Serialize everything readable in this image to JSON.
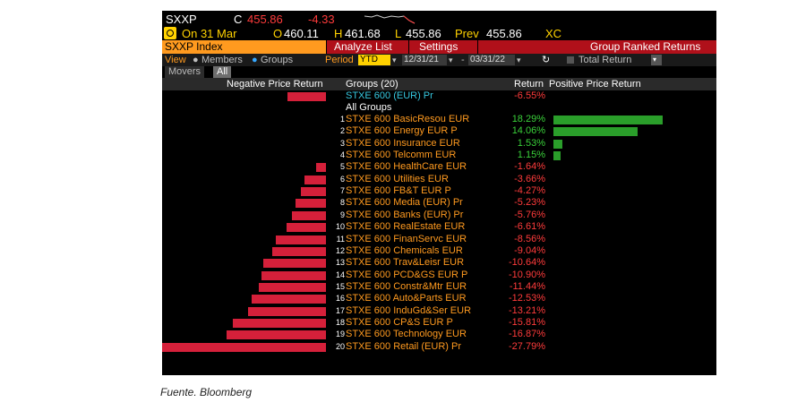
{
  "header": {
    "ticker": "SXXP",
    "type_code": "C",
    "last_price": "455.86",
    "change": "-4.33",
    "date_label": "On 31 Mar",
    "open_label": "O",
    "open": "460.11",
    "high_label": "H",
    "high": "461.68",
    "low_label": "L",
    "low": "455.86",
    "prev_label": "Prev",
    "prev": "455.86",
    "exchange": "XC"
  },
  "menu": {
    "index_label": "SXXP Index",
    "analyze": "Analyze List",
    "settings": "Settings",
    "title": "Group Ranked Returns"
  },
  "options": {
    "view_label": "View",
    "members": "Members",
    "groups": "Groups",
    "period_label": "Period",
    "period": "YTD",
    "start_date": "12/31/21",
    "end_date": "03/31/22",
    "total_return": "Total Return"
  },
  "tabs": {
    "movers": "Movers",
    "all": "All"
  },
  "columns": {
    "neg": "Negative Price Return",
    "groups": "Groups (20)",
    "ret": "Return",
    "pos": "Positive Price Return"
  },
  "index_row": {
    "name": "STXE 600 (EUR) Pr",
    "ret": "-6.55%",
    "value": -6.55
  },
  "all_groups_label": "All Groups",
  "rows": [
    {
      "rank": "1",
      "name": "STXE 600 BasicResou EUR",
      "ret": "18.29%",
      "value": 18.29
    },
    {
      "rank": "2",
      "name": "STXE 600 Energy EUR P",
      "ret": "14.06%",
      "value": 14.06
    },
    {
      "rank": "3",
      "name": "STXE 600 Insurance EUR",
      "ret": "1.53%",
      "value": 1.53
    },
    {
      "rank": "4",
      "name": "STXE 600 Telcomm EUR",
      "ret": "1.15%",
      "value": 1.15
    },
    {
      "rank": "5",
      "name": "STXE 600 HealthCare EUR",
      "ret": "-1.64%",
      "value": -1.64
    },
    {
      "rank": "6",
      "name": "STXE 600 Utilities EUR",
      "ret": "-3.66%",
      "value": -3.66
    },
    {
      "rank": "7",
      "name": "STXE 600 FB&T EUR P",
      "ret": "-4.27%",
      "value": -4.27
    },
    {
      "rank": "8",
      "name": "STXE 600 Media (EUR) Pr",
      "ret": "-5.23%",
      "value": -5.23
    },
    {
      "rank": "9",
      "name": "STXE 600 Banks (EUR) Pr",
      "ret": "-5.76%",
      "value": -5.76
    },
    {
      "rank": "10",
      "name": "STXE 600 RealEstate EUR",
      "ret": "-6.61%",
      "value": -6.61
    },
    {
      "rank": "11",
      "name": "STXE 600 FinanServc EUR",
      "ret": "-8.56%",
      "value": -8.56
    },
    {
      "rank": "12",
      "name": "STXE 600 Chemicals EUR",
      "ret": "-9.04%",
      "value": -9.04
    },
    {
      "rank": "13",
      "name": "STXE 600 Trav&Leisr EUR",
      "ret": "-10.64%",
      "value": -10.64
    },
    {
      "rank": "14",
      "name": "STXE 600 PCD&GS EUR P",
      "ret": "-10.90%",
      "value": -10.9
    },
    {
      "rank": "15",
      "name": "STXE 600 Constr&Mtr EUR",
      "ret": "-11.44%",
      "value": -11.44
    },
    {
      "rank": "16",
      "name": "STXE 600 Auto&Parts EUR",
      "ret": "-12.53%",
      "value": -12.53
    },
    {
      "rank": "17",
      "name": "STXE 600 InduGd&Ser EUR",
      "ret": "-13.21%",
      "value": -13.21
    },
    {
      "rank": "18",
      "name": "STXE 600 CP&S EUR P",
      "ret": "-15.81%",
      "value": -15.81
    },
    {
      "rank": "19",
      "name": "STXE 600 Technology EUR",
      "ret": "-16.87%",
      "value": -16.87
    },
    {
      "rank": "20",
      "name": "STXE 600 Retail (EUR) Pr",
      "ret": "-27.79%",
      "value": -27.79
    }
  ],
  "colors": {
    "neg": "#d5203a",
    "pos": "#2a9e2a",
    "menu": "#b0101a",
    "accent": "#ff9a1f"
  },
  "caption": "Fuente. Bloomberg"
}
